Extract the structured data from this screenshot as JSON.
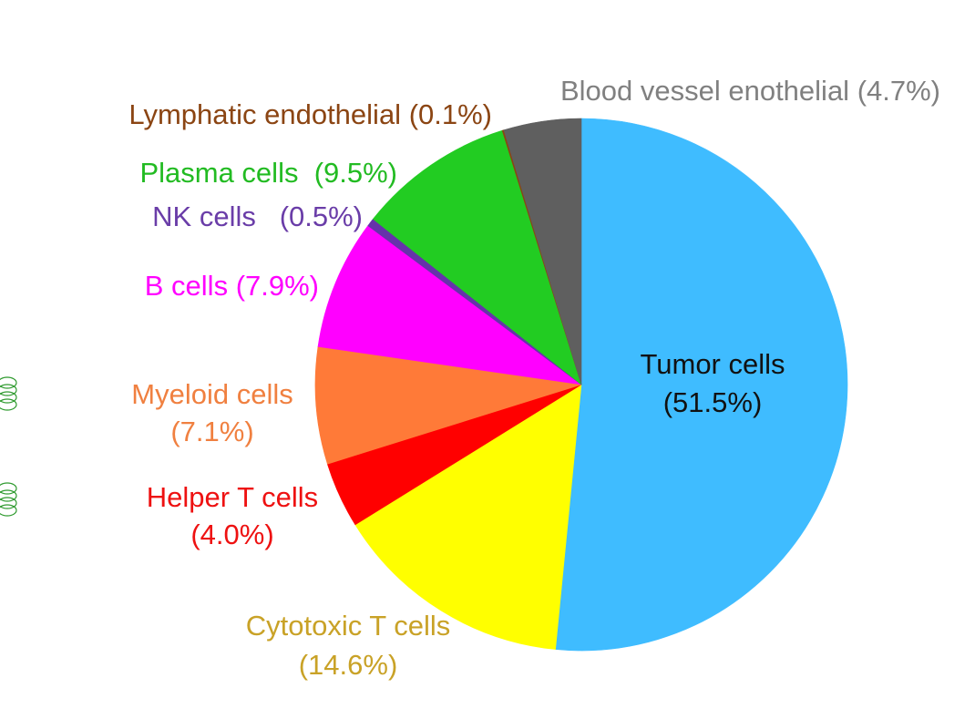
{
  "chart_data": {
    "type": "pie",
    "title": "",
    "start_angle_deg": 0,
    "direction": "clockwise",
    "units": "%",
    "slices": [
      {
        "label": "Tumor cells",
        "value": 51.5,
        "value_text": "(51.5%)",
        "color": "#3FBCFF",
        "label_color": "#111111"
      },
      {
        "label": "Cytotoxic T cells",
        "value": 14.6,
        "value_text": "(14.6%)",
        "color": "#FFFF00",
        "label_color": "#C9A227"
      },
      {
        "label": "Helper T cells",
        "value": 4.0,
        "value_text": "(4.0%)",
        "color": "#FF0000",
        "label_color": "#EE1111"
      },
      {
        "label": "Myeloid cells",
        "value": 7.1,
        "value_text": "(7.1%)",
        "color": "#FF7A38",
        "label_color": "#F08040"
      },
      {
        "label": "B cells",
        "value": 7.9,
        "value_text": "(7.9%)",
        "color": "#FF00FF",
        "label_color": "#FF00FF"
      },
      {
        "label": "NK cells",
        "value": 0.5,
        "value_text": "(0.5%)",
        "color": "#6633AA",
        "label_color": "#6A3DA8"
      },
      {
        "label": "Plasma cells",
        "value": 9.5,
        "value_text": "(9.5%)",
        "color": "#22CC22",
        "label_color": "#22BB22"
      },
      {
        "label": "Lymphatic endothelial",
        "value": 0.1,
        "value_text": "(0.1%)",
        "color": "#8B4513",
        "label_color": "#8B4513"
      },
      {
        "label": "Blood vessel enothelial",
        "value": 4.7,
        "value_text": "(4.7%)",
        "color": "#5F5F5F",
        "label_color": "#808080"
      }
    ]
  }
}
